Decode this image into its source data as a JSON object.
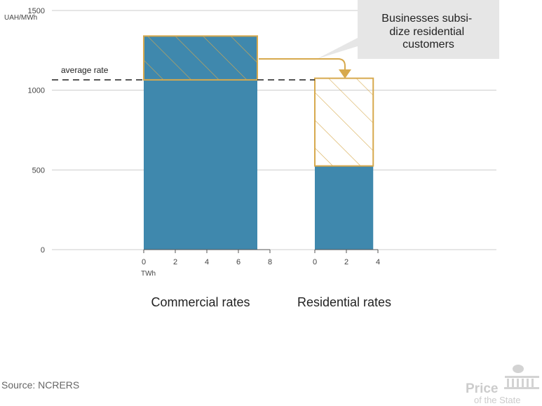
{
  "source": "Source: NCRERS",
  "logo": {
    "line1": "Price",
    "line2": "of the State"
  },
  "colors": {
    "bar": "#3f88ad",
    "outline": "#d7a94d",
    "grid": "#cccccc",
    "callout_bg": "#e6e6e6"
  },
  "chart_data": {
    "type": "bar",
    "ylabel": "UAH/MWh",
    "ylim": [
      0,
      1500
    ],
    "yticks": [
      0,
      500,
      1000,
      1500
    ],
    "average_rate": {
      "label": "average rate",
      "value": 1065
    },
    "xlabel": "TWh",
    "panels": [
      {
        "title": "Commercial rates",
        "xlim": [
          0,
          8
        ],
        "xticks": [
          0,
          2,
          4,
          6,
          8
        ],
        "volume_twh": 7.2,
        "rate": 1340,
        "base": 1065,
        "hatched": "above average"
      },
      {
        "title": "Residential rates",
        "xlim": [
          0,
          4
        ],
        "xticks": [
          0,
          2,
          4
        ],
        "volume_twh": 3.7,
        "rate": 525,
        "base": 1075,
        "hatched": "gap to cost"
      }
    ],
    "annotation": "Businesses subsi- dize residential customers"
  }
}
